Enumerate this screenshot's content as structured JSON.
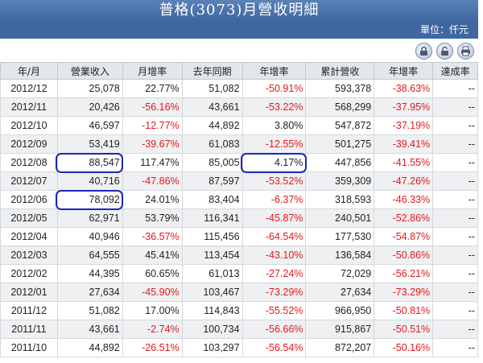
{
  "header": {
    "title": "普格(3073)月營收明細",
    "unit": "單位：仟元"
  },
  "toolbar": {
    "icons": [
      "lock-icon",
      "unlock-icon",
      "print-icon"
    ]
  },
  "colors": {
    "negative": "#e8161b",
    "header_bg": "#3f67a0",
    "highlight": "#1a2ab5"
  },
  "table": {
    "columns": [
      "年/月",
      "營業收入",
      "月增率",
      "去年同期",
      "年增率",
      "累計營收",
      "年增率",
      "達成率"
    ],
    "rows": [
      [
        "2012/12",
        "25,078",
        "22.77%",
        "51,082",
        "-50.91%",
        "593,378",
        "-38.63%",
        "--"
      ],
      [
        "2012/11",
        "20,426",
        "-56.16%",
        "43,661",
        "-53.22%",
        "568,299",
        "-37.95%",
        "--"
      ],
      [
        "2012/10",
        "46,597",
        "-12.77%",
        "44,892",
        "3.80%",
        "547,872",
        "-37.19%",
        "--"
      ],
      [
        "2012/09",
        "53,419",
        "-39.67%",
        "61,083",
        "-12.55%",
        "501,275",
        "-39.41%",
        "--"
      ],
      [
        "2012/08",
        "88,547",
        "117.47%",
        "85,005",
        "4.17%",
        "447,856",
        "-41.55%",
        "--"
      ],
      [
        "2012/07",
        "40,716",
        "-47.86%",
        "87,597",
        "-53.52%",
        "359,309",
        "-47.26%",
        "--"
      ],
      [
        "2012/06",
        "78,092",
        "24.01%",
        "83,404",
        "-6.37%",
        "318,593",
        "-46.33%",
        "--"
      ],
      [
        "2012/05",
        "62,971",
        "53.79%",
        "116,341",
        "-45.87%",
        "240,501",
        "-52.86%",
        "--"
      ],
      [
        "2012/04",
        "40,946",
        "-36.57%",
        "115,456",
        "-64.54%",
        "177,530",
        "-54.87%",
        "--"
      ],
      [
        "2012/03",
        "64,555",
        "45.41%",
        "113,454",
        "-43.10%",
        "136,584",
        "-50.86%",
        "--"
      ],
      [
        "2012/02",
        "44,395",
        "60.65%",
        "61,013",
        "-27.24%",
        "72,029",
        "-56.21%",
        "--"
      ],
      [
        "2012/01",
        "27,634",
        "-45.90%",
        "103,467",
        "-73.29%",
        "27,634",
        "-73.29%",
        "--"
      ],
      [
        "2011/12",
        "51,082",
        "17.00%",
        "114,843",
        "-55.52%",
        "966,950",
        "-50.81%",
        "--"
      ],
      [
        "2011/11",
        "43,661",
        "-2.74%",
        "100,734",
        "-56.66%",
        "915,867",
        "-50.51%",
        "--"
      ],
      [
        "2011/10",
        "44,892",
        "-26.51%",
        "103,297",
        "-56.54%",
        "872,207",
        "-50.16%",
        "--"
      ]
    ]
  }
}
